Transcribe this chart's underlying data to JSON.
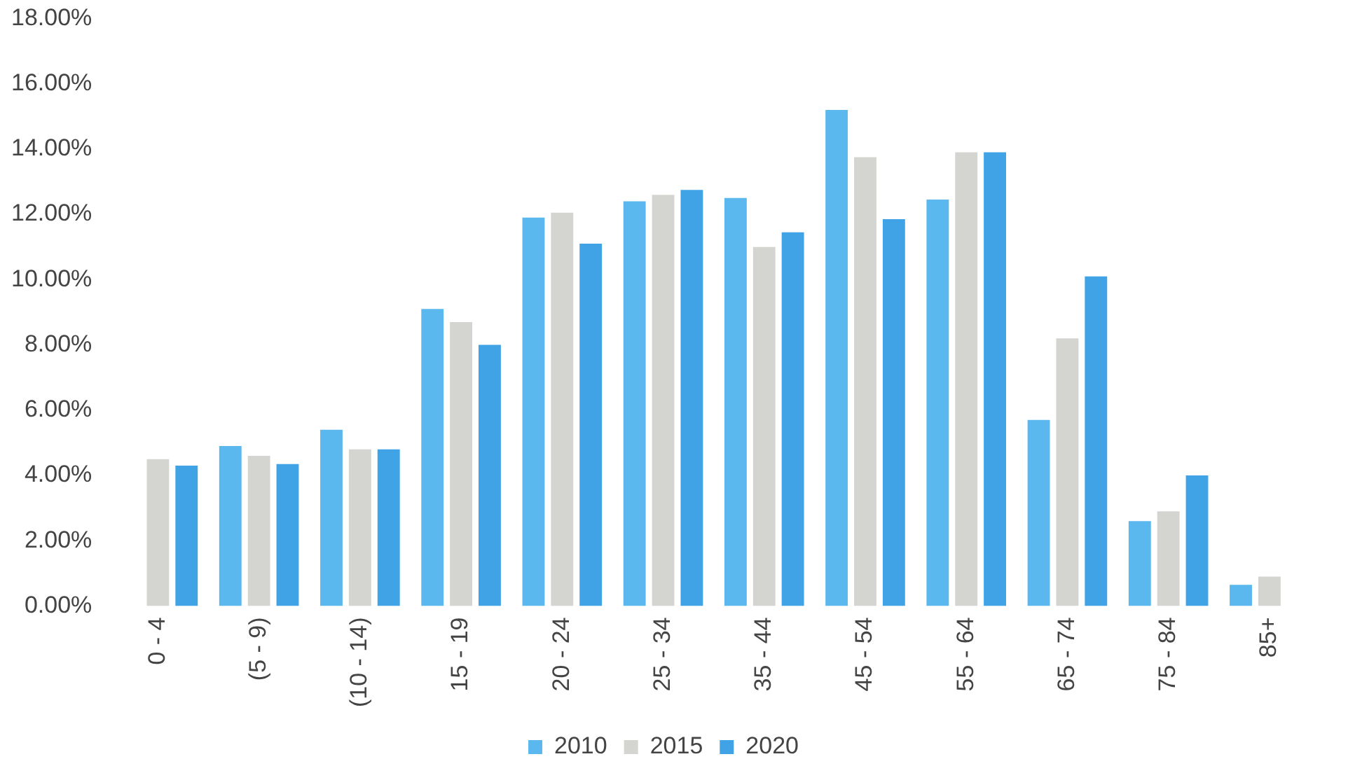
{
  "chart_data": {
    "type": "bar",
    "categories": [
      "0 - 4",
      "(5 - 9)",
      "(10 - 14)",
      "15 - 19",
      "20 - 24",
      "25 - 34",
      "35 - 44",
      "45 - 54",
      "55 - 64",
      "65 - 74",
      "75 - 84",
      "85+"
    ],
    "series": [
      {
        "name": "2010",
        "color": "#5bb8ee",
        "values": [
          null,
          4.9,
          5.4,
          9.1,
          11.9,
          12.4,
          12.5,
          15.2,
          12.45,
          5.7,
          2.6,
          0.65
        ]
      },
      {
        "name": "2015",
        "color": "#d4d4d0",
        "values": [
          4.5,
          4.6,
          4.8,
          8.7,
          12.05,
          12.6,
          11.0,
          13.75,
          13.9,
          8.2,
          2.9,
          0.9
        ]
      },
      {
        "name": "2020",
        "color": "#3fa3e6",
        "values": [
          4.3,
          4.35,
          4.8,
          8.0,
          11.1,
          12.75,
          11.45,
          11.85,
          13.9,
          10.1,
          4.0,
          null
        ]
      }
    ],
    "ylim": [
      0,
      18
    ],
    "yticks": [
      {
        "value": 0,
        "label": "0.00%"
      },
      {
        "value": 2,
        "label": "2.00%"
      },
      {
        "value": 4,
        "label": "4.00%"
      },
      {
        "value": 6,
        "label": "6.00%"
      },
      {
        "value": 8,
        "label": "8.00%"
      },
      {
        "value": 10,
        "label": "10.00%"
      },
      {
        "value": 12,
        "label": "12.00%"
      },
      {
        "value": 14,
        "label": "14.00%"
      },
      {
        "value": 16,
        "label": "16.00%"
      },
      {
        "value": 18,
        "label": "18.00%"
      }
    ],
    "grid": false,
    "legend": "bottom"
  }
}
